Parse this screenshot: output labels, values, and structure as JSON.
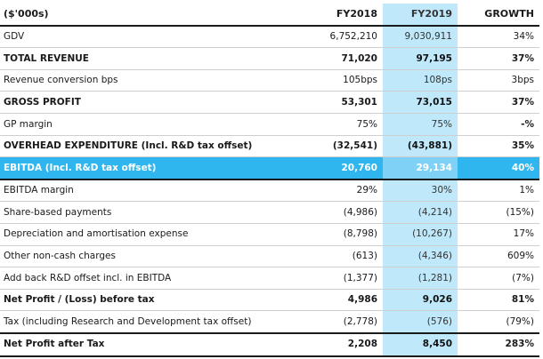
{
  "table": {
    "headers": {
      "label": "($'000s)",
      "fy2018": "FY2018",
      "fy2019": "FY2019",
      "growth": "GROWTH"
    },
    "rows": [
      {
        "label": "GDV",
        "fy2018": "6,752,210",
        "fy2019": "9,030,911",
        "growth": "34%"
      },
      {
        "label": "TOTAL REVENUE",
        "fy2018": "71,020",
        "fy2019": "97,195",
        "growth": "37%"
      },
      {
        "label": "Revenue conversion bps",
        "fy2018": "105bps",
        "fy2019": "108ps",
        "growth": "3bps"
      },
      {
        "label": "GROSS PROFIT",
        "fy2018": "53,301",
        "fy2019": "73,015",
        "growth": "37%"
      },
      {
        "label": "GP margin",
        "fy2018": "75%",
        "fy2019": "75%",
        "growth": "-%"
      },
      {
        "label": "OVERHEAD EXPENDITURE (Incl. R&D tax offset)",
        "fy2018": "(32,541)",
        "fy2019": "(43,881)",
        "growth": "35%"
      },
      {
        "label": "EBITDA (Incl. R&D tax offset)",
        "fy2018": "20,760",
        "fy2019": "29,134",
        "growth": "40%"
      },
      {
        "label": "EBITDA margin",
        "fy2018": "29%",
        "fy2019": "30%",
        "growth": "1%"
      },
      {
        "label": "Share-based payments",
        "fy2018": "(4,986)",
        "fy2019": "(4,214)",
        "growth": "(15%)"
      },
      {
        "label": "Depreciation and amortisation expense",
        "fy2018": "(8,798)",
        "fy2019": "(10,267)",
        "growth": "17%"
      },
      {
        "label": "Other non-cash charges",
        "fy2018": "(613)",
        "fy2019": "(4,346)",
        "growth": "609%"
      },
      {
        "label": "Add back R&D offset incl. in EBITDA",
        "fy2018": "(1,377)",
        "fy2019": "(1,281)",
        "growth": "(7%)"
      },
      {
        "label": "Net Profit / (Loss) before tax",
        "fy2018": "4,986",
        "fy2019": "9,026",
        "growth": "81%"
      },
      {
        "label": "Tax (including Research and Development tax offset)",
        "fy2018": "(2,778)",
        "fy2019": "(576)",
        "growth": "(79%)"
      },
      {
        "label": "Net Profit after Tax",
        "fy2018": "2,208",
        "fy2019": "8,450",
        "growth": "283%"
      }
    ]
  },
  "colors": {
    "fy2019_column": "#bfe9fb",
    "ebitda_row": "#2fb6ef",
    "ebitda_fy2019_cell": "#7fd2f5"
  }
}
